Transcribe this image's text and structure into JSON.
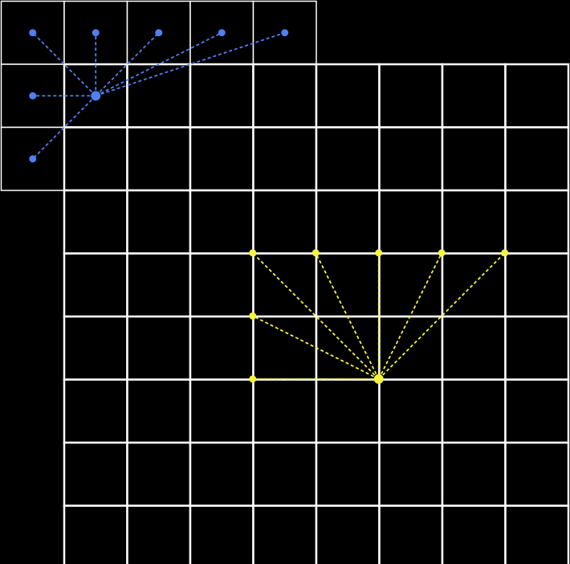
{
  "background": "#000000",
  "grid_line_color": "#ffffff",
  "small_grid": {
    "rows": 3,
    "cols": 5
  },
  "large_grid": {
    "rows": 8,
    "cols": 8
  },
  "blue_cluster": {
    "color": "#4f7ff0",
    "line_style": "dashed",
    "hub": {
      "col": 1,
      "row": 1
    },
    "points": [
      {
        "col": 0,
        "row": 0
      },
      {
        "col": 1,
        "row": 0
      },
      {
        "col": 2,
        "row": 0
      },
      {
        "col": 3,
        "row": 0
      },
      {
        "col": 4,
        "row": 0
      },
      {
        "col": 0,
        "row": 1
      },
      {
        "col": 0,
        "row": 2
      }
    ]
  },
  "yellow_cluster": {
    "color": "#f5f53d",
    "line_style": "dashed",
    "hub": {
      "col": 5,
      "row": 5
    },
    "points": [
      {
        "col": 3,
        "row": 3
      },
      {
        "col": 4,
        "row": 3
      },
      {
        "col": 5,
        "row": 3
      },
      {
        "col": 6,
        "row": 3
      },
      {
        "col": 7,
        "row": 3
      },
      {
        "col": 3,
        "row": 4
      },
      {
        "col": 3,
        "row": 5
      }
    ]
  }
}
